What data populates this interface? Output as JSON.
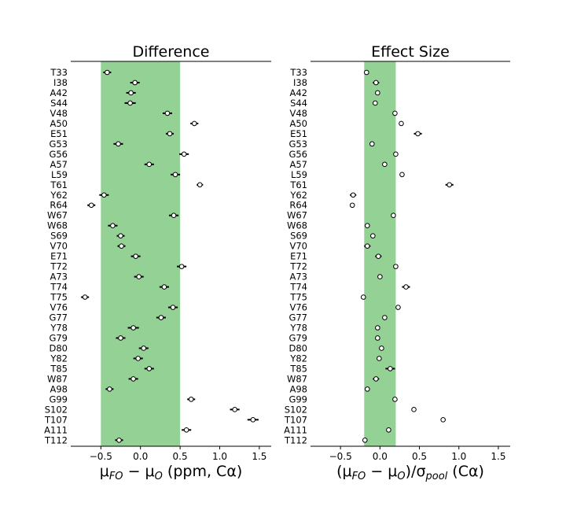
{
  "chart_data": [
    {
      "type": "errorbar-dot",
      "title": "Difference",
      "xlabel_parts": [
        "μ",
        "FO",
        " − μ",
        "O",
        " (ppm, C",
        "α",
        ")"
      ],
      "xlim": [
        -0.88,
        1.65
      ],
      "xticks": [
        -0.5,
        0.0,
        0.5,
        1.0,
        1.5
      ],
      "xtick_labels": [
        "−0.5",
        "0.0",
        "0.5",
        "1.0",
        "1.5"
      ],
      "band": [
        -0.5,
        0.5
      ],
      "band_color": "#94d194",
      "categories": [
        "T33",
        "I38",
        "A42",
        "S44",
        "V48",
        "A50",
        "E51",
        "G53",
        "G56",
        "A57",
        "L59",
        "T61",
        "Y62",
        "R64",
        "W67",
        "W68",
        "S69",
        "V70",
        "E71",
        "T72",
        "A73",
        "T74",
        "T75",
        "V76",
        "G77",
        "Y78",
        "G79",
        "D80",
        "Y82",
        "T85",
        "W87",
        "A98",
        "G99",
        "S102",
        "T107",
        "A111",
        "T112"
      ],
      "values": [
        -0.42,
        -0.07,
        -0.12,
        -0.13,
        0.34,
        0.68,
        0.37,
        -0.28,
        0.55,
        0.11,
        0.44,
        0.75,
        -0.46,
        -0.62,
        0.42,
        -0.35,
        -0.25,
        -0.24,
        -0.06,
        0.52,
        -0.02,
        0.3,
        -0.7,
        0.41,
        0.26,
        -0.09,
        -0.25,
        0.04,
        -0.03,
        0.11,
        -0.09,
        -0.39,
        0.64,
        1.19,
        1.42,
        0.58,
        -0.27
      ],
      "errors": [
        0.05,
        0.06,
        0.06,
        0.07,
        0.06,
        0.05,
        0.05,
        0.06,
        0.06,
        0.06,
        0.06,
        0.04,
        0.06,
        0.05,
        0.06,
        0.06,
        0.05,
        0.05,
        0.06,
        0.06,
        0.06,
        0.06,
        0.05,
        0.06,
        0.06,
        0.07,
        0.06,
        0.06,
        0.06,
        0.06,
        0.06,
        0.05,
        0.05,
        0.06,
        0.07,
        0.06,
        0.05
      ]
    },
    {
      "type": "errorbar-dot",
      "title": "Effect Size",
      "xlabel_parts": [
        "(μ",
        "FO",
        " − μ",
        "O",
        ")/σ",
        "pool",
        "  (C",
        "α",
        ")"
      ],
      "xlim": [
        -0.88,
        1.65
      ],
      "xticks": [
        -0.5,
        0.0,
        0.5,
        1.0,
        1.5
      ],
      "xtick_labels": [
        "−0.5",
        "0.0",
        "0.5",
        "1.0",
        "1.5"
      ],
      "band": [
        -0.2,
        0.2
      ],
      "band_color": "#94d194",
      "categories": [
        "T33",
        "I38",
        "A42",
        "S44",
        "V48",
        "A50",
        "E51",
        "G53",
        "G56",
        "A57",
        "L59",
        "T61",
        "Y62",
        "R64",
        "W67",
        "W68",
        "S69",
        "V70",
        "E71",
        "T72",
        "A73",
        "T74",
        "T75",
        "V76",
        "G77",
        "Y78",
        "G79",
        "D80",
        "Y82",
        "T85",
        "W87",
        "A98",
        "G99",
        "S102",
        "T107",
        "A111",
        "T112"
      ],
      "values": [
        -0.17,
        -0.05,
        -0.03,
        -0.06,
        0.19,
        0.27,
        0.48,
        -0.1,
        0.2,
        0.06,
        0.28,
        0.88,
        -0.34,
        -0.35,
        0.17,
        -0.16,
        -0.09,
        -0.16,
        -0.02,
        0.2,
        0.0,
        0.33,
        -0.21,
        0.23,
        0.06,
        -0.03,
        -0.03,
        0.02,
        -0.01,
        0.13,
        -0.05,
        -0.16,
        0.19,
        0.43,
        0.8,
        0.11,
        -0.19
      ],
      "errors": [
        0.02,
        0.04,
        0.02,
        0.02,
        0.02,
        0.02,
        0.05,
        0.02,
        0.02,
        0.03,
        0.03,
        0.05,
        0.04,
        0.03,
        0.02,
        0.03,
        0.03,
        0.04,
        0.04,
        0.02,
        0.02,
        0.05,
        0.02,
        0.03,
        0.02,
        0.03,
        0.02,
        0.02,
        0.03,
        0.06,
        0.04,
        0.02,
        0.02,
        0.02,
        0.03,
        0.02,
        0.03
      ]
    }
  ]
}
